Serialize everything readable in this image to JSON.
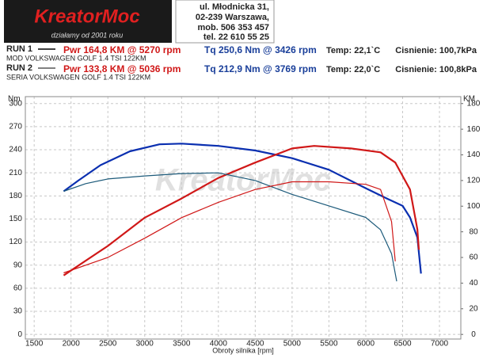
{
  "header": {
    "logo": "KreatorMoc",
    "slogan": "działamy od 2001 roku",
    "address": [
      "ul. Młodnicka 31,",
      "02-239  Warszawa,",
      "mob.  506 353 457",
      "tel.  22 610 55 25"
    ],
    "runs": [
      {
        "run": "RUN 1",
        "car": "MOD VOLKSWAGEN GOLF 1.4 TSI 122KM",
        "pwr": "Pwr  164,8 KM @ 5270 rpm",
        "tq": "Tq  250,6 Nm @ 3426 rpm",
        "temp": "Temp: 22,1`C",
        "press": "Cisnienie: 100,7kPa"
      },
      {
        "run": "RUN 2",
        "car": "SERIA VOLKSWAGEN GOLF 1.4 TSI 122KM",
        "pwr": "Pwr  133,8 KM @ 5036 rpm",
        "tq": "Tq  212,9 Nm @ 3769 rpm",
        "temp": "Temp: 22,0`C",
        "press": "Cisnienie: 100,8kPa"
      }
    ]
  },
  "chart_data": {
    "type": "line",
    "ylabel": "Nm",
    "y2label": "KM",
    "xlabel": "Obroty silnika [rpm]",
    "xlim": [
      1380,
      7290
    ],
    "xticks": [
      1500,
      2000,
      2500,
      3000,
      3500,
      4000,
      4500,
      5000,
      5500,
      6000,
      6500,
      7000
    ],
    "ylim": [
      -6,
      309
    ],
    "yticks": [
      0,
      30,
      60,
      90,
      120,
      150,
      180,
      210,
      240,
      270,
      300
    ],
    "y2lim": [
      -3.6,
      185.4
    ],
    "y2ticks": [
      0,
      20,
      40,
      60,
      80,
      100,
      120,
      140,
      160,
      180
    ],
    "grid": true,
    "series": [
      {
        "color": "#0a2fb0",
        "width": 2.2,
        "axis": "y",
        "x": [
          1900,
          2100,
          2400,
          2800,
          3200,
          3500,
          4000,
          4500,
          5000,
          5500,
          6000,
          6300,
          6500,
          6600,
          6700,
          6750
        ],
        "values": [
          186,
          200,
          220,
          238,
          247,
          248,
          245,
          239,
          229,
          214,
          190,
          176,
          167,
          152,
          126,
          79
        ]
      },
      {
        "color": "#d01818",
        "width": 2.2,
        "axis": "y2",
        "x": [
          1900,
          2500,
          3000,
          3500,
          4000,
          4500,
          5000,
          5300,
          5800,
          6200,
          6400,
          6600,
          6700,
          6720
        ],
        "values": [
          46,
          69,
          91,
          106,
          122,
          134,
          145,
          147,
          145,
          142,
          134,
          113,
          82,
          66
        ]
      },
      {
        "color": "#1c5a7a",
        "width": 1.2,
        "axis": "y",
        "x": [
          1900,
          2200,
          2500,
          3000,
          3500,
          4000,
          4500,
          5000,
          5500,
          6000,
          6200,
          6350,
          6420
        ],
        "values": [
          186,
          196,
          202,
          206,
          209,
          210,
          200,
          182,
          167,
          152,
          136,
          105,
          69
        ]
      },
      {
        "color": "#d01818",
        "width": 1.2,
        "axis": "y2",
        "x": [
          1900,
          2500,
          3000,
          3500,
          4000,
          4500,
          5000,
          5500,
          6000,
          6200,
          6350,
          6400
        ],
        "values": [
          48,
          60,
          75,
          91,
          103,
          113,
          119,
          119,
          117,
          113,
          88,
          57
        ]
      }
    ]
  }
}
